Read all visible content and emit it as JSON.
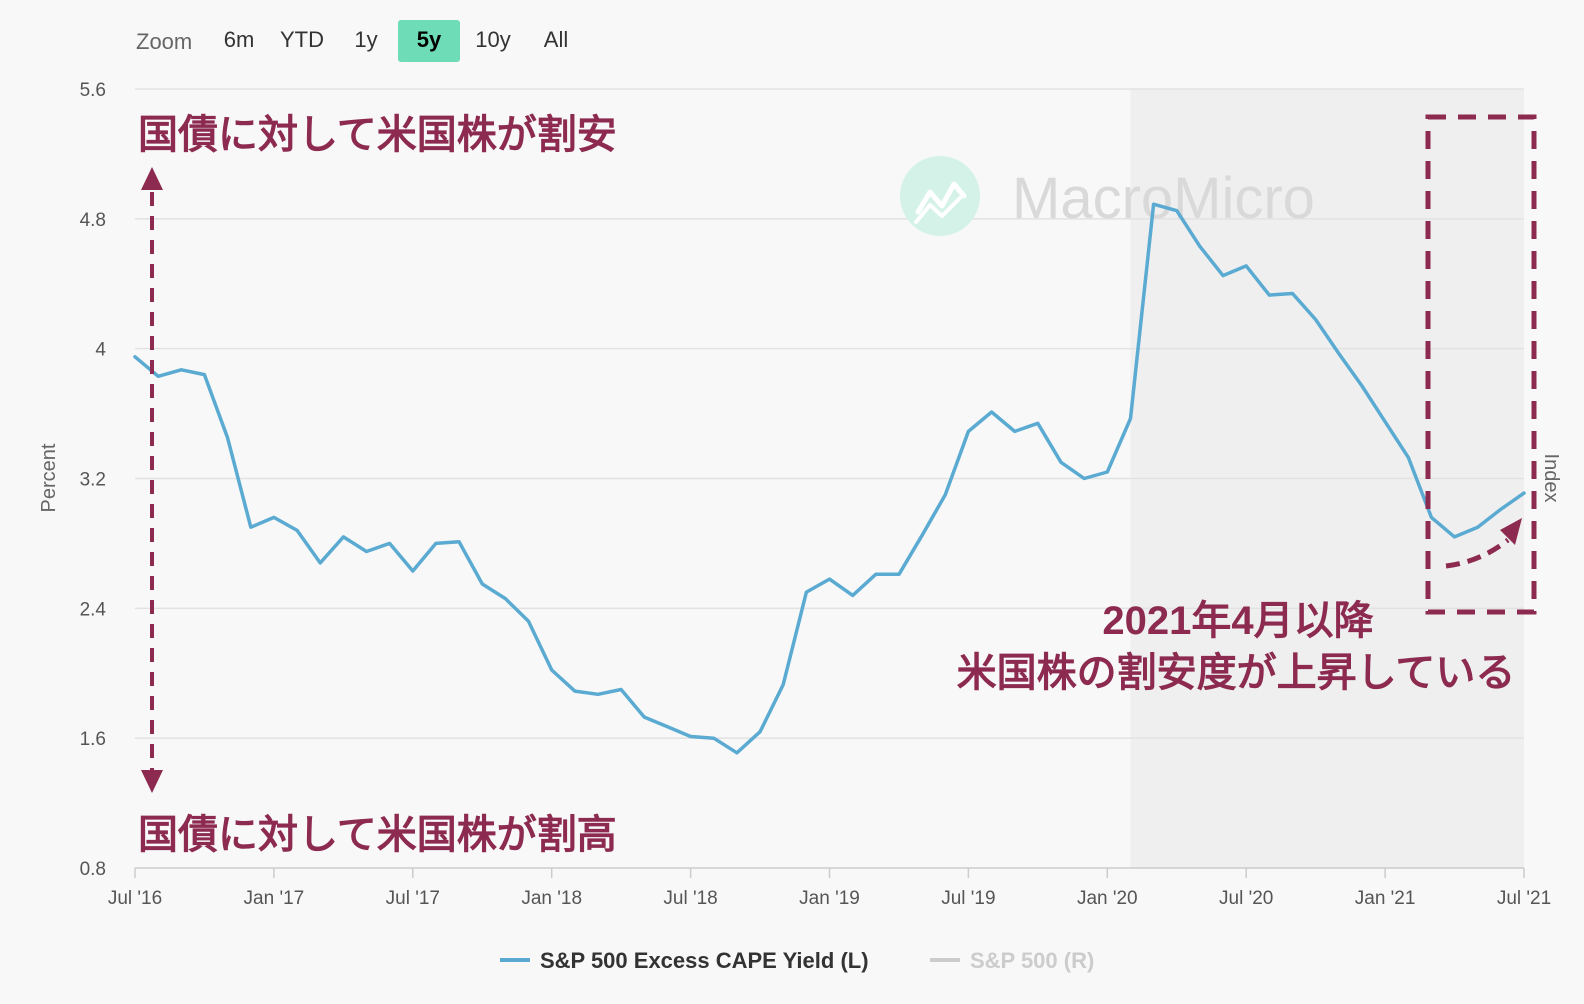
{
  "toolbar": {
    "zoom_label": "Zoom",
    "buttons": [
      {
        "label": "6m",
        "active": false
      },
      {
        "label": "YTD",
        "active": false
      },
      {
        "label": "1y",
        "active": false
      },
      {
        "label": "5y",
        "active": true
      },
      {
        "label": "10y",
        "active": false
      },
      {
        "label": "All",
        "active": false
      }
    ],
    "active_color": "#6ddcb7"
  },
  "watermark": {
    "text": "MacroMicro",
    "icon": "chart-line-icon"
  },
  "annotations": {
    "top": "国債に対して米国株が割安",
    "bottom": "国債に対して米国株が割高",
    "right_line1": "2021年4月以降",
    "right_line2": "米国株の割安度が上昇している",
    "color": "#8c2a4f"
  },
  "chart_data": {
    "type": "line",
    "ylabel": "Percent",
    "y2label": "Index",
    "ylim": [
      0.8,
      5.6
    ],
    "yticks": [
      "0.8",
      "1.6",
      "2.4",
      "3.2",
      "4",
      "4.8",
      "5.6"
    ],
    "xlim": [
      "2016-07",
      "2021-07"
    ],
    "xticks": [
      "Jul '16",
      "Jan '17",
      "Jul '17",
      "Jan '18",
      "Jul '18",
      "Jan '19",
      "Jul '19",
      "Jan '20",
      "Jul '20",
      "Jan '21",
      "Jul '21"
    ],
    "shaded_region": [
      "2020-02",
      "2021-07"
    ],
    "grid": true,
    "legend_position": "bottom-center",
    "series": [
      {
        "name": "S&P 500 Excess CAPE Yield (L)",
        "color": "#5aaad2",
        "x": [
          "2016-07",
          "2016-08",
          "2016-09",
          "2016-10",
          "2016-11",
          "2016-12",
          "2017-01",
          "2017-02",
          "2017-03",
          "2017-04",
          "2017-05",
          "2017-06",
          "2017-07",
          "2017-08",
          "2017-09",
          "2017-10",
          "2017-11",
          "2017-12",
          "2018-01",
          "2018-02",
          "2018-03",
          "2018-04",
          "2018-05",
          "2018-06",
          "2018-07",
          "2018-08",
          "2018-09",
          "2018-10",
          "2018-11",
          "2018-12",
          "2019-01",
          "2019-02",
          "2019-03",
          "2019-04",
          "2019-05",
          "2019-06",
          "2019-07",
          "2019-08",
          "2019-09",
          "2019-10",
          "2019-11",
          "2019-12",
          "2020-01",
          "2020-02",
          "2020-03",
          "2020-04",
          "2020-05",
          "2020-06",
          "2020-07",
          "2020-08",
          "2020-09",
          "2020-10",
          "2020-11",
          "2020-12",
          "2021-01",
          "2021-02",
          "2021-03",
          "2021-04",
          "2021-05",
          "2021-06",
          "2021-07"
        ],
        "values": [
          3.95,
          3.83,
          3.87,
          3.84,
          3.45,
          2.9,
          2.96,
          2.88,
          2.68,
          2.84,
          2.75,
          2.8,
          2.63,
          2.8,
          2.81,
          2.55,
          2.46,
          2.32,
          2.02,
          1.89,
          1.87,
          1.9,
          1.73,
          1.67,
          1.61,
          1.6,
          1.51,
          1.64,
          1.93,
          2.5,
          2.58,
          2.48,
          2.61,
          2.61,
          2.85,
          3.1,
          3.49,
          3.61,
          3.49,
          3.54,
          3.3,
          3.2,
          3.24,
          3.57,
          4.89,
          4.85,
          4.63,
          4.45,
          4.51,
          4.33,
          4.34,
          4.18,
          3.97,
          3.77,
          3.55,
          3.33,
          2.96,
          2.84,
          2.9,
          3.01,
          3.11
        ]
      },
      {
        "name": "S&P 500 (R)",
        "color": "#cccccc",
        "values": []
      }
    ]
  }
}
